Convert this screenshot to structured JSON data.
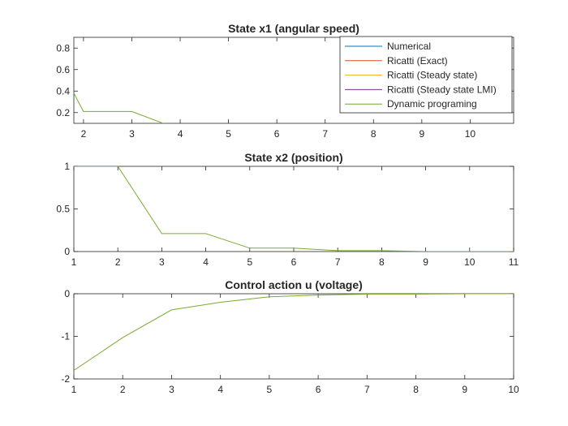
{
  "chart_data": [
    {
      "type": "line",
      "title": "State x1 (angular speed)",
      "xlabel": "",
      "ylabel": "",
      "xlim": [
        1.8,
        10.9
      ],
      "ylim": [
        0.1,
        0.9
      ],
      "xticks": [
        "2",
        "3",
        "4",
        "5",
        "6",
        "7",
        "8",
        "9",
        "10"
      ],
      "yticks": [
        "0.2",
        "0.4",
        "0.6",
        "0.8"
      ],
      "grid": false,
      "legend": {
        "placement": "top-right",
        "entries": [
          {
            "name": "Numerical",
            "color": "#0072BD"
          },
          {
            "name": "Ricatti (Exact)",
            "color": "#D95319"
          },
          {
            "name": "Ricatti (Steady state)",
            "color": "#EDB120"
          },
          {
            "name": "Ricatti (Steady state LMI)",
            "color": "#7E2F8E"
          },
          {
            "name": "Dynamic programing",
            "color": "#77AC30"
          }
        ]
      },
      "series": [
        {
          "name": "Dynamic programing",
          "color": "#77AC30",
          "x": [
            1.8,
            2,
            3,
            4,
            5,
            6,
            7,
            8,
            9,
            10,
            10.9
          ],
          "y": [
            0.38,
            0.21,
            0.21,
            0.04,
            0.04,
            0.01,
            0.0,
            0.0,
            0.0,
            0.0,
            0.0
          ]
        }
      ]
    },
    {
      "type": "line",
      "title": "State x2 (position)",
      "xlabel": "",
      "ylabel": "",
      "xlim": [
        1,
        11
      ],
      "ylim": [
        0,
        1
      ],
      "xticks": [
        "1",
        "2",
        "3",
        "4",
        "5",
        "6",
        "7",
        "8",
        "9",
        "10",
        "11"
      ],
      "yticks": [
        "0",
        "0.5",
        "1"
      ],
      "grid": false,
      "series": [
        {
          "name": "Dynamic programing",
          "color": "#77AC30",
          "x": [
            1,
            2,
            3,
            4,
            5,
            6,
            7,
            8,
            9,
            10,
            11
          ],
          "y": [
            1.0,
            1.0,
            0.21,
            0.21,
            0.04,
            0.04,
            0.01,
            0.01,
            0.0,
            0.0,
            0.0
          ]
        }
      ]
    },
    {
      "type": "line",
      "title": "Control action u (voltage)",
      "xlabel": "",
      "ylabel": "",
      "xlim": [
        1,
        10
      ],
      "ylim": [
        -2,
        0
      ],
      "xticks": [
        "1",
        "2",
        "3",
        "4",
        "5",
        "6",
        "7",
        "8",
        "9",
        "10"
      ],
      "yticks": [
        "-2",
        "-1",
        "0"
      ],
      "grid": false,
      "series": [
        {
          "name": "Dynamic programing",
          "color": "#77AC30",
          "x": [
            1,
            2,
            3,
            4,
            5,
            6,
            7,
            8,
            9,
            10
          ],
          "y": [
            -1.8,
            -1.03,
            -0.38,
            -0.2,
            -0.07,
            -0.03,
            -0.01,
            -0.01,
            0.0,
            0.0
          ]
        }
      ]
    }
  ]
}
